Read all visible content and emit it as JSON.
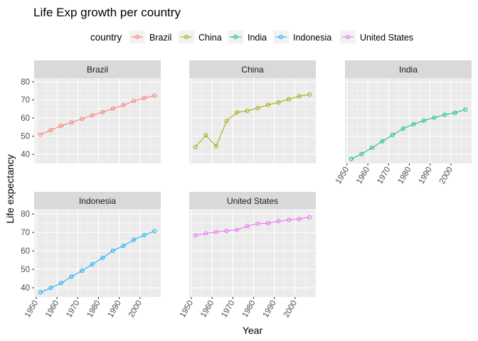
{
  "chart_data": {
    "type": "line",
    "title": "Life Exp growth per country",
    "xlabel": "Year",
    "ylabel": "Life expectancy",
    "legend": {
      "title": "country",
      "placement": "top",
      "entries": [
        "Brazil",
        "China",
        "India",
        "Indonesia",
        "United States"
      ]
    },
    "x": [
      1952,
      1957,
      1962,
      1967,
      1972,
      1977,
      1982,
      1987,
      1992,
      1997,
      2002,
      2007
    ],
    "xlim": [
      1949,
      2010
    ],
    "x_ticks": [
      "1950",
      "1960",
      "1970",
      "1980",
      "1990",
      "2000"
    ],
    "ylim": [
      35,
      82
    ],
    "y_ticks": [
      "40",
      "50",
      "60",
      "70",
      "80"
    ],
    "grid": true,
    "panel_background": "#EBEBEB",
    "strip_background": "#D9D9D9",
    "series": [
      {
        "name": "Brazil",
        "color": "#F8766D",
        "values": [
          50.9,
          53.3,
          55.7,
          57.6,
          59.5,
          61.5,
          63.3,
          65.2,
          67.1,
          69.4,
          71.0,
          72.4
        ]
      },
      {
        "name": "China",
        "color": "#A3A500",
        "values": [
          44.0,
          50.5,
          44.5,
          58.4,
          63.1,
          63.97,
          65.5,
          67.3,
          68.7,
          70.4,
          72.0,
          73.0
        ]
      },
      {
        "name": "India",
        "color": "#00BF7D",
        "values": [
          37.4,
          40.2,
          43.6,
          47.2,
          50.7,
          54.2,
          56.6,
          58.6,
          60.2,
          61.8,
          62.9,
          64.7
        ]
      },
      {
        "name": "Indonesia",
        "color": "#00B0F6",
        "values": [
          37.5,
          39.9,
          42.5,
          46.0,
          49.2,
          52.7,
          56.2,
          60.1,
          62.7,
          66.0,
          68.6,
          70.7
        ]
      },
      {
        "name": "United States",
        "color": "#E76BF3",
        "values": [
          68.4,
          69.5,
          70.2,
          70.8,
          71.3,
          73.4,
          74.7,
          75.0,
          76.1,
          76.8,
          77.3,
          78.2
        ]
      }
    ]
  }
}
